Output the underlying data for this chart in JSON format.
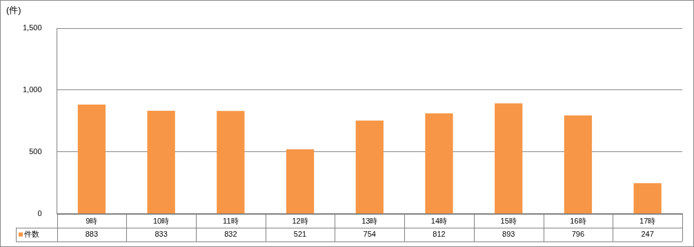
{
  "chart_data": {
    "type": "bar",
    "ylabel": "(件)",
    "categories": [
      "9時",
      "10時",
      "11時",
      "12時",
      "13時",
      "14時",
      "15時",
      "16時",
      "17時"
    ],
    "series": [
      {
        "name": "件数",
        "color": "#f79646",
        "values": [
          883,
          833,
          832,
          521,
          754,
          812,
          893,
          796,
          247
        ]
      }
    ],
    "ylim": [
      0,
      1500
    ],
    "yticks": [
      {
        "value": 0,
        "label": "0"
      },
      {
        "value": 500,
        "label": "500"
      },
      {
        "value": 1000,
        "label": "1,000"
      },
      {
        "value": 1500,
        "label": "1,500"
      }
    ],
    "grid": "y",
    "data_labels": true
  }
}
